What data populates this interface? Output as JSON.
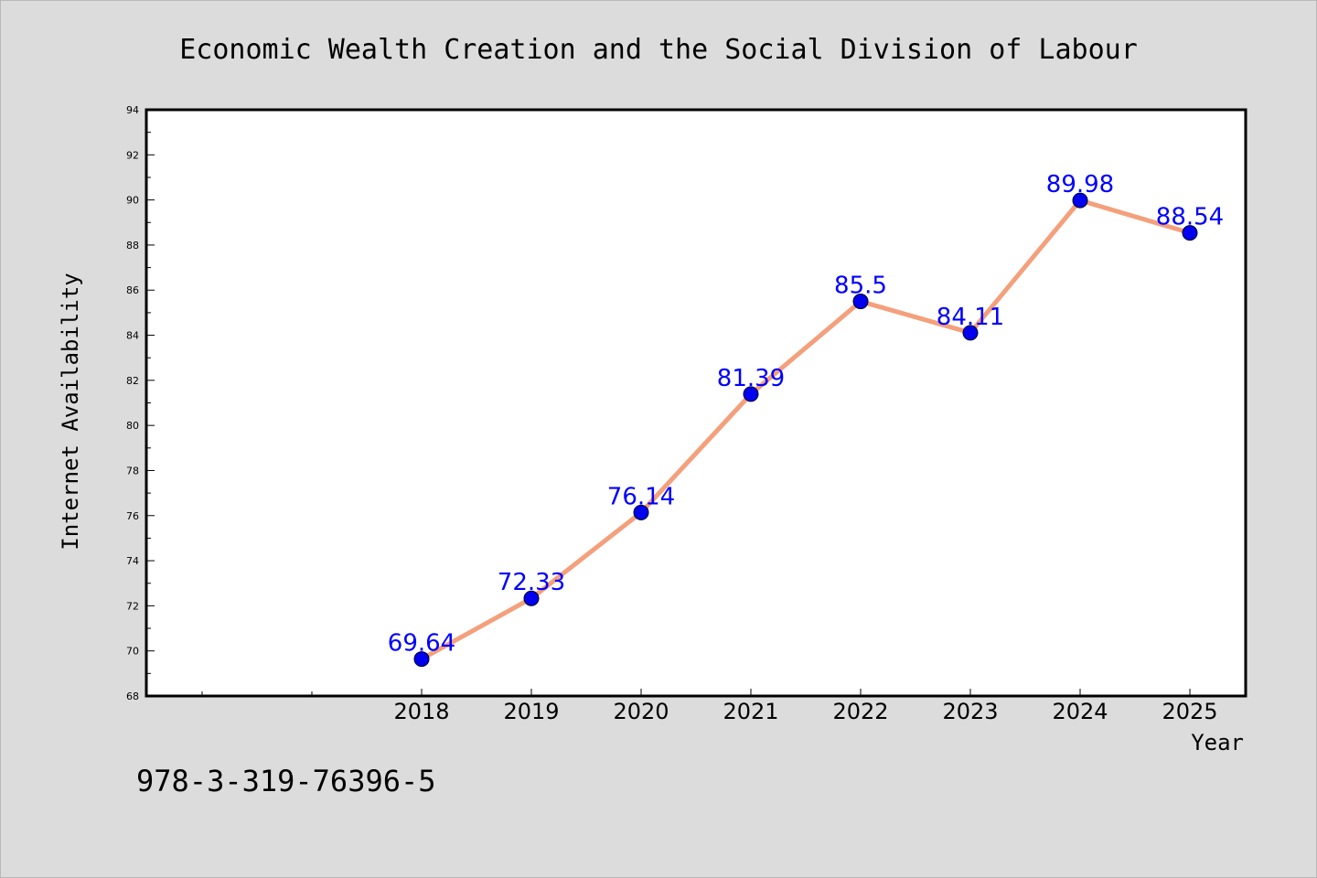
{
  "colors": {
    "background": "#dcdcdc",
    "plot_background": "#ffffff",
    "line": "#f4a07c",
    "marker": "#0000ee",
    "data_label": "#0000ff"
  },
  "footer": {
    "code": "978-3-319-76396-5"
  },
  "chart_data": {
    "type": "line",
    "title": "Economic Wealth Creation and the Social Division of Labour",
    "xlabel": "Year",
    "ylabel": "Internet Availability",
    "x": [
      "2018",
      "2019",
      "2020",
      "2021",
      "2022",
      "2023",
      "2024",
      "2025"
    ],
    "series": [
      {
        "values": [
          69.64,
          72.33,
          76.14,
          81.39,
          85.5,
          84.11,
          89.98,
          88.54
        ],
        "labels": [
          "69.64",
          "72.33",
          "76.14",
          "81.39",
          "85.5",
          "84.11",
          "89.98",
          "88.54"
        ]
      }
    ],
    "ylim": [
      68,
      94
    ],
    "yticks": [
      "68",
      "70",
      "72",
      "74",
      "76",
      "78",
      "80",
      "82",
      "84",
      "86",
      "88",
      "90",
      "92",
      "94"
    ],
    "grid": false,
    "legend": "none"
  }
}
